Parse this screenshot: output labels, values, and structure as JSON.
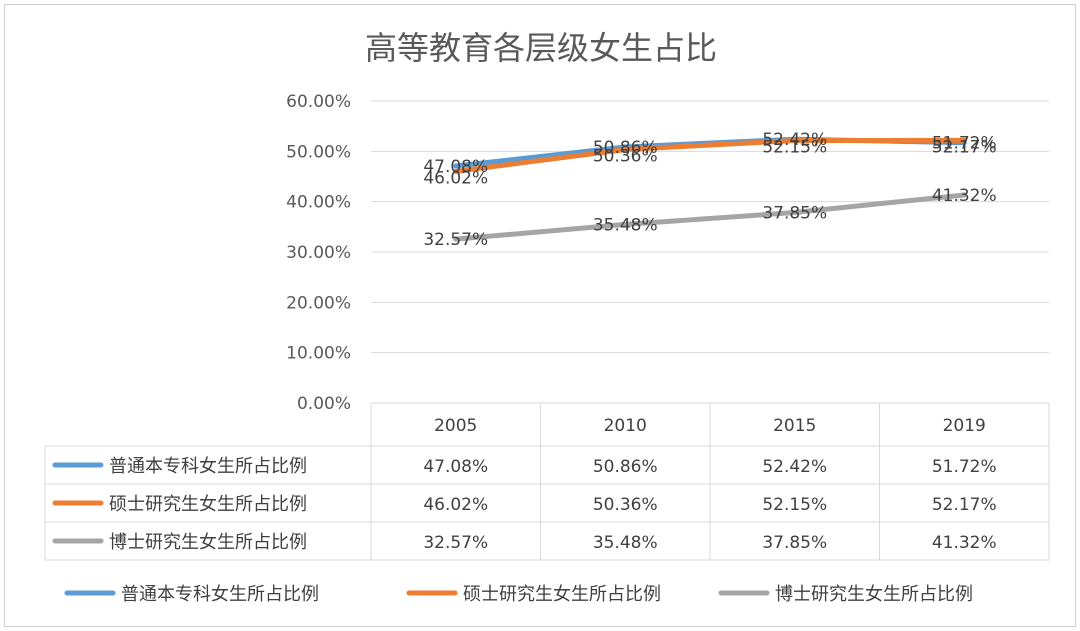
{
  "chart_data": {
    "type": "line",
    "title": "高等教育各层级女生占比",
    "categories": [
      "2005",
      "2010",
      "2015",
      "2019"
    ],
    "y_ticks": [
      "0.00%",
      "10.00%",
      "20.00%",
      "30.00%",
      "40.00%",
      "50.00%",
      "60.00%"
    ],
    "ylim": [
      0,
      60
    ],
    "grid": true,
    "legend_position": "bottom",
    "data_table": true,
    "series": [
      {
        "name": "普通本专科女生所占比例",
        "color": "#5B9BD5",
        "values": [
          47.08,
          50.86,
          52.42,
          51.72
        ],
        "labels": [
          "47.08%",
          "50.86%",
          "52.42%",
          "51.72%"
        ]
      },
      {
        "name": "硕士研究生女生所占比例",
        "color": "#ED7D31",
        "values": [
          46.02,
          50.36,
          52.15,
          52.17
        ],
        "labels": [
          "46.02%",
          "50.36%",
          "52.15%",
          "52.17%"
        ]
      },
      {
        "name": "博士研究生女生所占比例",
        "color": "#A5A5A5",
        "values": [
          32.57,
          35.48,
          37.85,
          41.32
        ],
        "labels": [
          "32.57%",
          "35.48%",
          "37.85%",
          "41.32%"
        ]
      }
    ]
  }
}
